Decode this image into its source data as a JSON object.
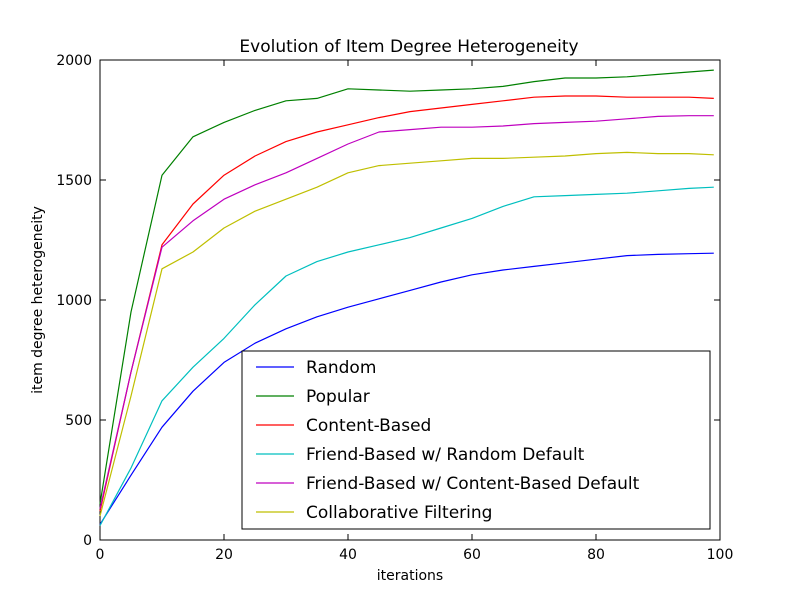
{
  "chart_data": {
    "type": "line",
    "title": "Evolution of Item Degree Heterogeneity",
    "xlabel": "iterations",
    "ylabel": "item degree heterogeneity",
    "xlim": [
      0,
      100
    ],
    "ylim": [
      0,
      2000
    ],
    "xticks": [
      0,
      20,
      40,
      60,
      80,
      100
    ],
    "yticks": [
      0,
      500,
      1000,
      1500,
      2000
    ],
    "grid": false,
    "legend_position": "lower-right",
    "x": [
      0,
      5,
      10,
      15,
      20,
      25,
      30,
      35,
      40,
      45,
      50,
      55,
      60,
      65,
      70,
      75,
      80,
      85,
      90,
      95,
      99
    ],
    "series": [
      {
        "name": "Random",
        "color": "#0000ff",
        "values": [
          65,
          270,
          470,
          620,
          740,
          820,
          880,
          930,
          970,
          1005,
          1040,
          1075,
          1105,
          1125,
          1140,
          1155,
          1170,
          1185,
          1190,
          1193,
          1195
        ]
      },
      {
        "name": "Popular",
        "color": "#008000",
        "values": [
          150,
          950,
          1520,
          1680,
          1740,
          1790,
          1830,
          1840,
          1880,
          1875,
          1870,
          1875,
          1880,
          1890,
          1910,
          1925,
          1925,
          1930,
          1940,
          1950,
          1958
        ]
      },
      {
        "name": "Content-Based",
        "color": "#ff0000",
        "values": [
          120,
          700,
          1230,
          1400,
          1520,
          1600,
          1660,
          1700,
          1730,
          1760,
          1785,
          1800,
          1815,
          1830,
          1845,
          1850,
          1850,
          1845,
          1845,
          1845,
          1840
        ]
      },
      {
        "name": "Friend-Based w/ Random Default",
        "color": "#00bfbf",
        "values": [
          60,
          300,
          580,
          720,
          840,
          980,
          1100,
          1160,
          1200,
          1230,
          1260,
          1300,
          1340,
          1390,
          1430,
          1435,
          1440,
          1445,
          1455,
          1465,
          1470
        ]
      },
      {
        "name": "Friend-Based w/ Content-Based Default",
        "color": "#bf00bf",
        "values": [
          130,
          700,
          1220,
          1330,
          1420,
          1480,
          1530,
          1590,
          1650,
          1700,
          1710,
          1720,
          1720,
          1725,
          1735,
          1740,
          1745,
          1755,
          1765,
          1768,
          1768
        ]
      },
      {
        "name": "Collaborative Filtering",
        "color": "#bfbf00",
        "values": [
          100,
          600,
          1130,
          1200,
          1300,
          1370,
          1420,
          1470,
          1530,
          1560,
          1570,
          1580,
          1590,
          1590,
          1595,
          1600,
          1610,
          1615,
          1610,
          1610,
          1605
        ]
      }
    ]
  }
}
